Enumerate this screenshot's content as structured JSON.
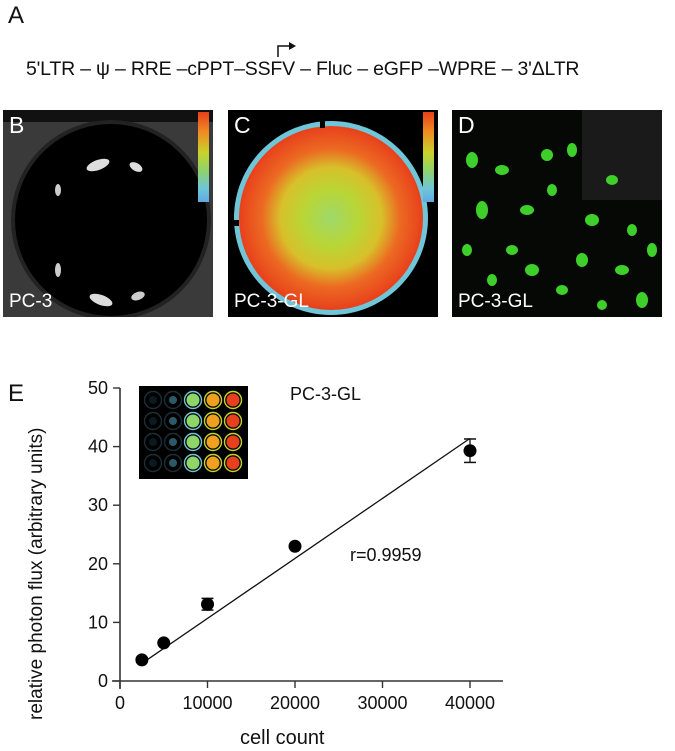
{
  "panel_A": {
    "letter": "A",
    "construct": "5'LTR – ψ – RRE –cPPT–SSFV – Fluc – eGFP –WPRE – 3'ΔLTR",
    "promoter_icon": "right-angle-arrow-icon"
  },
  "panel_B": {
    "letter": "B",
    "caption": "PC-3"
  },
  "panel_C": {
    "letter": "C",
    "caption": "PC-3-GL"
  },
  "panel_D": {
    "letter": "D",
    "caption": "PC-3-GL"
  },
  "panel_E": {
    "letter": "E"
  },
  "colorbar": {
    "colors": [
      "#e8401c",
      "#f08a22",
      "#c8d22a",
      "#8fd26a",
      "#6fc6d8",
      "#62a8e4"
    ]
  },
  "chart_data": {
    "type": "scatter",
    "title": "PC-3-GL",
    "xlabel": "cell count",
    "ylabel": "relative photon flux (arbitrary units)",
    "xlim": [
      0,
      43000
    ],
    "ylim": [
      0,
      50
    ],
    "xticks": [
      0,
      10000,
      20000,
      30000,
      40000
    ],
    "yticks": [
      0,
      10,
      20,
      30,
      40,
      50
    ],
    "x": [
      2500,
      5000,
      10000,
      20000,
      40000
    ],
    "y": [
      3.6,
      6.5,
      13.1,
      23.0,
      39.3
    ],
    "error": [
      0.3,
      0.4,
      1.0,
      0.3,
      2.0
    ],
    "fit_line": {
      "x": [
        2500,
        40000
      ],
      "y": [
        3.0,
        41.4
      ]
    },
    "annotation": "r=0.9959",
    "grid": false,
    "legend": null
  }
}
